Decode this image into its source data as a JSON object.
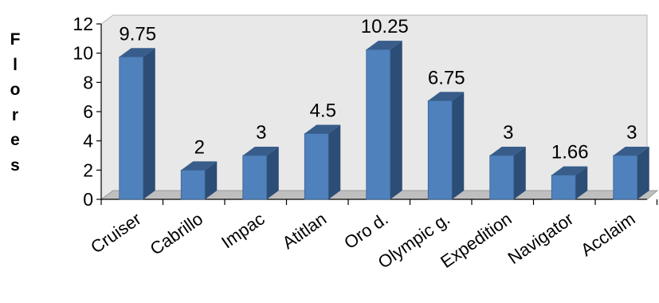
{
  "chart_data": {
    "type": "bar",
    "style": "3d-clustered-column",
    "title": "",
    "xlabel": "",
    "ylabel": "Flores",
    "categories": [
      "Cruiser",
      "Cabrillo",
      "Impac",
      "Atitlan",
      "Oro d.",
      "Olympic g.",
      "Expedition",
      "Navigator",
      "Acclaim"
    ],
    "values": [
      9.75,
      2,
      3,
      4.5,
      10.25,
      6.75,
      3,
      1.66,
      3
    ],
    "data_labels": [
      "9.75",
      "2",
      "3",
      "4.5",
      "10.25",
      "6.75",
      "3",
      "1.66",
      "3"
    ],
    "ylim": [
      0,
      12
    ],
    "yticks": [
      0,
      2,
      4,
      6,
      8,
      10,
      12
    ],
    "grid": false,
    "legend": "none",
    "colors": {
      "bar_front": "#4f81bd",
      "bar_side": "#2c4d75",
      "bar_top": "#385d8a",
      "wall": "#e8e8e8",
      "floor": "#bfbfbf",
      "text": "#000000"
    }
  }
}
